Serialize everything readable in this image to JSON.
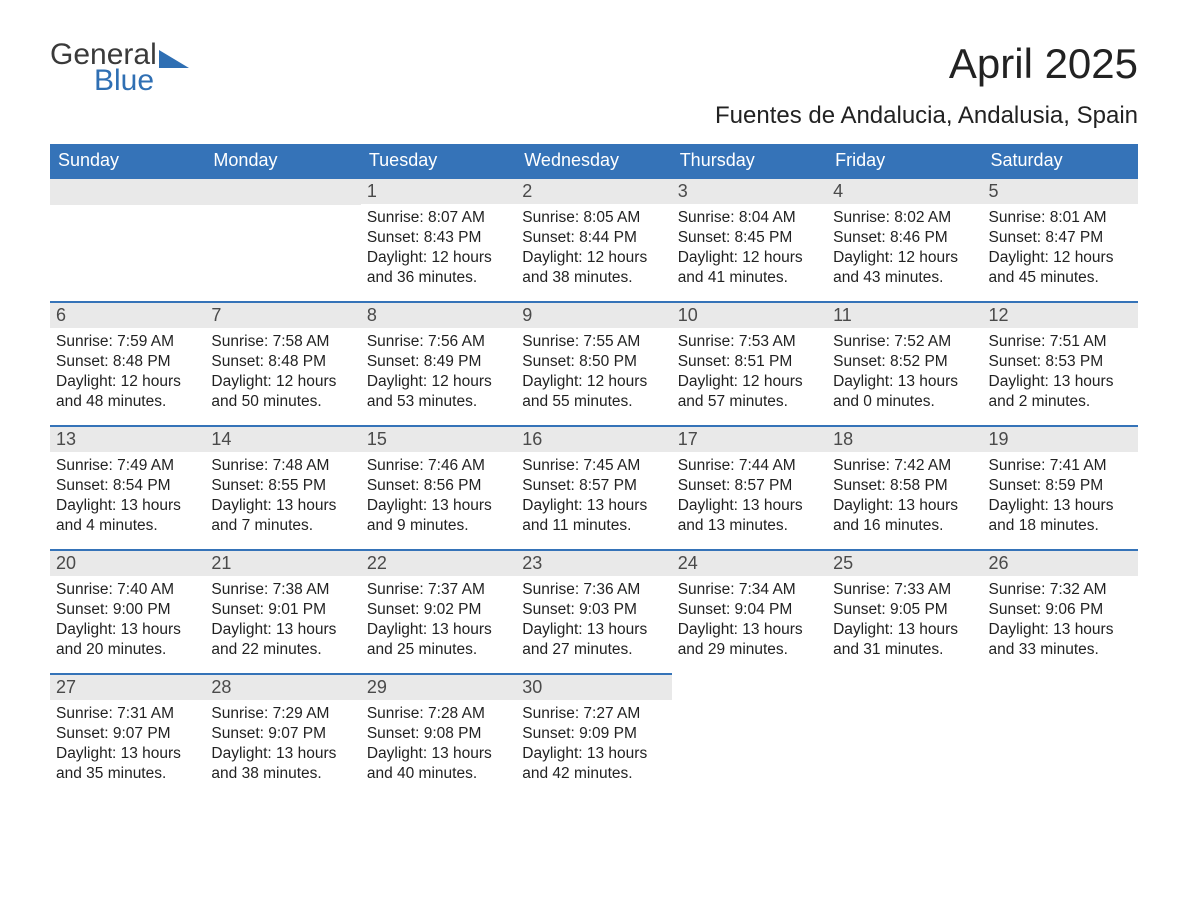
{
  "logo": {
    "text1": "General",
    "text2": "Blue",
    "triangle_color": "#2f6fb3"
  },
  "title": "April 2025",
  "subtitle": "Fuentes de Andalucia, Andalusia, Spain",
  "colors": {
    "header_bg": "#3573b8",
    "header_text": "#ffffff",
    "daynum_bg": "#e9e9e9",
    "daynum_text": "#4a4a4a",
    "border": "#3573b8",
    "body_text": "#222222",
    "background": "#ffffff"
  },
  "fontsizes": {
    "title": 42,
    "subtitle": 24,
    "weekday": 18,
    "daynum": 18,
    "body": 15.5,
    "logo": 30
  },
  "weekdays": [
    "Sunday",
    "Monday",
    "Tuesday",
    "Wednesday",
    "Thursday",
    "Friday",
    "Saturday"
  ],
  "calendar": {
    "columns": 7,
    "leading_blanks": 2,
    "days": [
      {
        "n": "1",
        "sunrise": "8:07 AM",
        "sunset": "8:43 PM",
        "daylight": "12 hours and 36 minutes."
      },
      {
        "n": "2",
        "sunrise": "8:05 AM",
        "sunset": "8:44 PM",
        "daylight": "12 hours and 38 minutes."
      },
      {
        "n": "3",
        "sunrise": "8:04 AM",
        "sunset": "8:45 PM",
        "daylight": "12 hours and 41 minutes."
      },
      {
        "n": "4",
        "sunrise": "8:02 AM",
        "sunset": "8:46 PM",
        "daylight": "12 hours and 43 minutes."
      },
      {
        "n": "5",
        "sunrise": "8:01 AM",
        "sunset": "8:47 PM",
        "daylight": "12 hours and 45 minutes."
      },
      {
        "n": "6",
        "sunrise": "7:59 AM",
        "sunset": "8:48 PM",
        "daylight": "12 hours and 48 minutes."
      },
      {
        "n": "7",
        "sunrise": "7:58 AM",
        "sunset": "8:48 PM",
        "daylight": "12 hours and 50 minutes."
      },
      {
        "n": "8",
        "sunrise": "7:56 AM",
        "sunset": "8:49 PM",
        "daylight": "12 hours and 53 minutes."
      },
      {
        "n": "9",
        "sunrise": "7:55 AM",
        "sunset": "8:50 PM",
        "daylight": "12 hours and 55 minutes."
      },
      {
        "n": "10",
        "sunrise": "7:53 AM",
        "sunset": "8:51 PM",
        "daylight": "12 hours and 57 minutes."
      },
      {
        "n": "11",
        "sunrise": "7:52 AM",
        "sunset": "8:52 PM",
        "daylight": "13 hours and 0 minutes."
      },
      {
        "n": "12",
        "sunrise": "7:51 AM",
        "sunset": "8:53 PM",
        "daylight": "13 hours and 2 minutes."
      },
      {
        "n": "13",
        "sunrise": "7:49 AM",
        "sunset": "8:54 PM",
        "daylight": "13 hours and 4 minutes."
      },
      {
        "n": "14",
        "sunrise": "7:48 AM",
        "sunset": "8:55 PM",
        "daylight": "13 hours and 7 minutes."
      },
      {
        "n": "15",
        "sunrise": "7:46 AM",
        "sunset": "8:56 PM",
        "daylight": "13 hours and 9 minutes."
      },
      {
        "n": "16",
        "sunrise": "7:45 AM",
        "sunset": "8:57 PM",
        "daylight": "13 hours and 11 minutes."
      },
      {
        "n": "17",
        "sunrise": "7:44 AM",
        "sunset": "8:57 PM",
        "daylight": "13 hours and 13 minutes."
      },
      {
        "n": "18",
        "sunrise": "7:42 AM",
        "sunset": "8:58 PM",
        "daylight": "13 hours and 16 minutes."
      },
      {
        "n": "19",
        "sunrise": "7:41 AM",
        "sunset": "8:59 PM",
        "daylight": "13 hours and 18 minutes."
      },
      {
        "n": "20",
        "sunrise": "7:40 AM",
        "sunset": "9:00 PM",
        "daylight": "13 hours and 20 minutes."
      },
      {
        "n": "21",
        "sunrise": "7:38 AM",
        "sunset": "9:01 PM",
        "daylight": "13 hours and 22 minutes."
      },
      {
        "n": "22",
        "sunrise": "7:37 AM",
        "sunset": "9:02 PM",
        "daylight": "13 hours and 25 minutes."
      },
      {
        "n": "23",
        "sunrise": "7:36 AM",
        "sunset": "9:03 PM",
        "daylight": "13 hours and 27 minutes."
      },
      {
        "n": "24",
        "sunrise": "7:34 AM",
        "sunset": "9:04 PM",
        "daylight": "13 hours and 29 minutes."
      },
      {
        "n": "25",
        "sunrise": "7:33 AM",
        "sunset": "9:05 PM",
        "daylight": "13 hours and 31 minutes."
      },
      {
        "n": "26",
        "sunrise": "7:32 AM",
        "sunset": "9:06 PM",
        "daylight": "13 hours and 33 minutes."
      },
      {
        "n": "27",
        "sunrise": "7:31 AM",
        "sunset": "9:07 PM",
        "daylight": "13 hours and 35 minutes."
      },
      {
        "n": "28",
        "sunrise": "7:29 AM",
        "sunset": "9:07 PM",
        "daylight": "13 hours and 38 minutes."
      },
      {
        "n": "29",
        "sunrise": "7:28 AM",
        "sunset": "9:08 PM",
        "daylight": "13 hours and 40 minutes."
      },
      {
        "n": "30",
        "sunrise": "7:27 AM",
        "sunset": "9:09 PM",
        "daylight": "13 hours and 42 minutes."
      }
    ]
  },
  "labels": {
    "sunrise": "Sunrise: ",
    "sunset": "Sunset: ",
    "daylight": "Daylight: "
  }
}
